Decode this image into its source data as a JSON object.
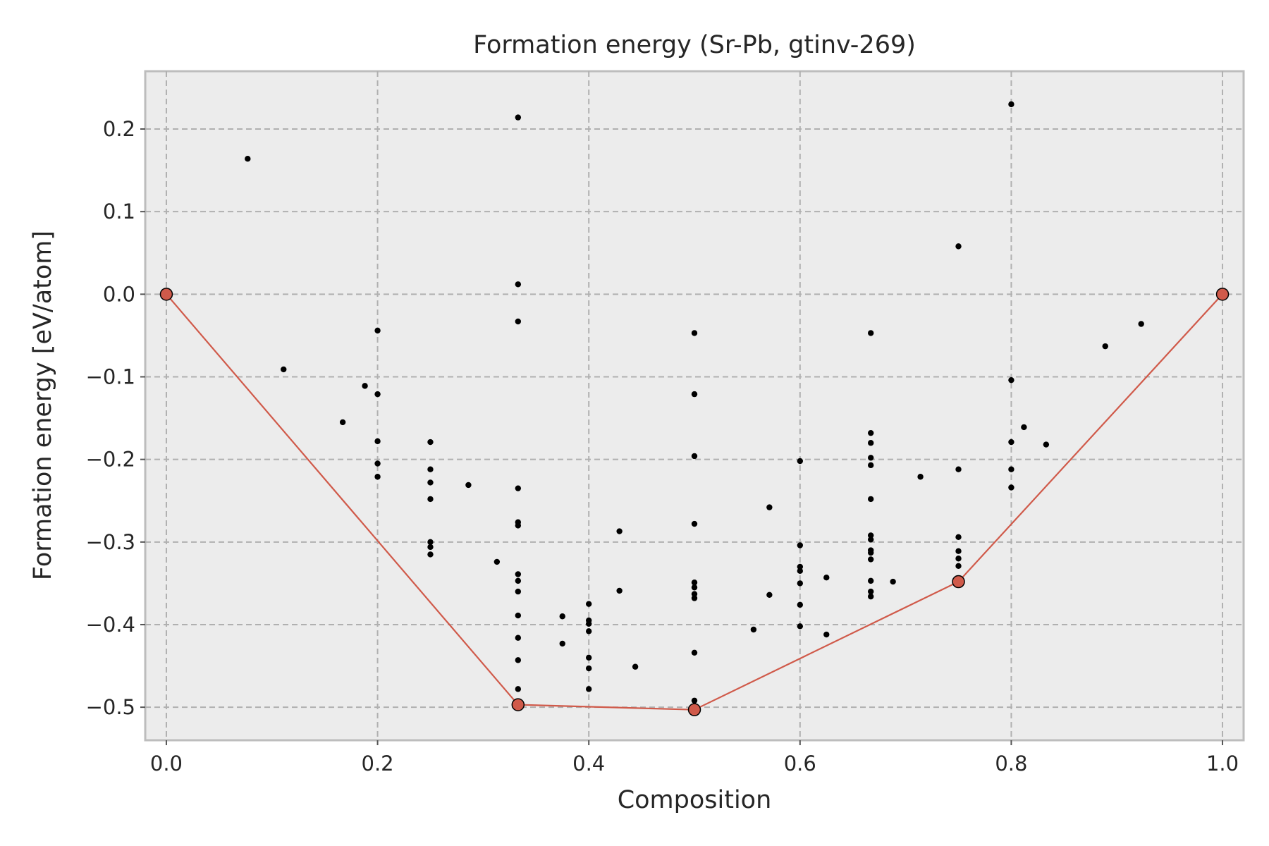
{
  "chart_data": {
    "type": "scatter",
    "title": "Formation energy (Sr-Pb, gtinv-269)",
    "xlabel": "Composition",
    "ylabel": "Formation energy [eV/atom]",
    "xlim": [
      -0.02,
      1.02
    ],
    "ylim": [
      -0.54,
      0.27
    ],
    "grid": true,
    "x_ticks": [
      0.0,
      0.2,
      0.4,
      0.6,
      0.8,
      1.0
    ],
    "x_tick_labels": [
      "0.0",
      "0.2",
      "0.4",
      "0.6",
      "0.8",
      "1.0"
    ],
    "y_ticks": [
      0.2,
      0.1,
      0.0,
      -0.1,
      -0.2,
      -0.3,
      -0.4,
      -0.5
    ],
    "y_tick_labels": [
      "0.2",
      "0.1",
      "0.0",
      "−0.1",
      "−0.2",
      "−0.3",
      "−0.4",
      "−0.5"
    ],
    "colors": {
      "points": "#000000",
      "hull": "#d05a4a",
      "background": "#ececec"
    },
    "series": [
      {
        "kind": "points",
        "points": [
          [
            0.077,
            0.164
          ],
          [
            0.111,
            -0.091
          ],
          [
            0.167,
            -0.155
          ],
          [
            0.188,
            -0.111
          ],
          [
            0.2,
            -0.044
          ],
          [
            0.2,
            -0.121
          ],
          [
            0.2,
            -0.178
          ],
          [
            0.2,
            -0.205
          ],
          [
            0.2,
            -0.221
          ],
          [
            0.25,
            -0.179
          ],
          [
            0.25,
            -0.212
          ],
          [
            0.25,
            -0.228
          ],
          [
            0.25,
            -0.248
          ],
          [
            0.25,
            -0.3
          ],
          [
            0.25,
            -0.306
          ],
          [
            0.25,
            -0.315
          ],
          [
            0.286,
            -0.231
          ],
          [
            0.313,
            -0.324
          ],
          [
            0.333,
            0.214
          ],
          [
            0.333,
            0.012
          ],
          [
            0.333,
            -0.033
          ],
          [
            0.333,
            -0.235
          ],
          [
            0.333,
            -0.276
          ],
          [
            0.333,
            -0.28
          ],
          [
            0.333,
            -0.339
          ],
          [
            0.333,
            -0.347
          ],
          [
            0.333,
            -0.36
          ],
          [
            0.333,
            -0.389
          ],
          [
            0.333,
            -0.416
          ],
          [
            0.333,
            -0.443
          ],
          [
            0.333,
            -0.478
          ],
          [
            0.375,
            -0.39
          ],
          [
            0.375,
            -0.423
          ],
          [
            0.4,
            -0.375
          ],
          [
            0.4,
            -0.395
          ],
          [
            0.4,
            -0.399
          ],
          [
            0.4,
            -0.408
          ],
          [
            0.4,
            -0.44
          ],
          [
            0.4,
            -0.453
          ],
          [
            0.4,
            -0.478
          ],
          [
            0.429,
            -0.287
          ],
          [
            0.429,
            -0.359
          ],
          [
            0.444,
            -0.451
          ],
          [
            0.5,
            -0.047
          ],
          [
            0.5,
            -0.121
          ],
          [
            0.5,
            -0.196
          ],
          [
            0.5,
            -0.278
          ],
          [
            0.5,
            -0.349
          ],
          [
            0.5,
            -0.355
          ],
          [
            0.5,
            -0.363
          ],
          [
            0.5,
            -0.368
          ],
          [
            0.5,
            -0.434
          ],
          [
            0.5,
            -0.492
          ],
          [
            0.556,
            -0.406
          ],
          [
            0.571,
            -0.258
          ],
          [
            0.571,
            -0.364
          ],
          [
            0.6,
            -0.202
          ],
          [
            0.6,
            -0.304
          ],
          [
            0.6,
            -0.33
          ],
          [
            0.6,
            -0.335
          ],
          [
            0.6,
            -0.35
          ],
          [
            0.6,
            -0.376
          ],
          [
            0.6,
            -0.402
          ],
          [
            0.625,
            -0.343
          ],
          [
            0.625,
            -0.412
          ],
          [
            0.667,
            -0.047
          ],
          [
            0.667,
            -0.168
          ],
          [
            0.667,
            -0.18
          ],
          [
            0.667,
            -0.198
          ],
          [
            0.667,
            -0.207
          ],
          [
            0.667,
            -0.248
          ],
          [
            0.667,
            -0.292
          ],
          [
            0.667,
            -0.297
          ],
          [
            0.667,
            -0.31
          ],
          [
            0.667,
            -0.313
          ],
          [
            0.667,
            -0.321
          ],
          [
            0.667,
            -0.347
          ],
          [
            0.667,
            -0.36
          ],
          [
            0.667,
            -0.366
          ],
          [
            0.688,
            -0.348
          ],
          [
            0.714,
            -0.221
          ],
          [
            0.75,
            0.058
          ],
          [
            0.75,
            -0.212
          ],
          [
            0.75,
            -0.294
          ],
          [
            0.75,
            -0.311
          ],
          [
            0.75,
            -0.32
          ],
          [
            0.75,
            -0.329
          ],
          [
            0.8,
            0.23
          ],
          [
            0.8,
            -0.104
          ],
          [
            0.8,
            -0.179
          ],
          [
            0.8,
            -0.212
          ],
          [
            0.8,
            -0.234
          ],
          [
            0.812,
            -0.161
          ],
          [
            0.833,
            -0.182
          ],
          [
            0.889,
            -0.063
          ],
          [
            0.923,
            -0.036
          ]
        ]
      },
      {
        "kind": "hull",
        "points": [
          [
            0.0,
            0.0
          ],
          [
            0.333,
            -0.497
          ],
          [
            0.5,
            -0.503
          ],
          [
            0.75,
            -0.348
          ],
          [
            1.0,
            0.0
          ]
        ]
      }
    ]
  }
}
